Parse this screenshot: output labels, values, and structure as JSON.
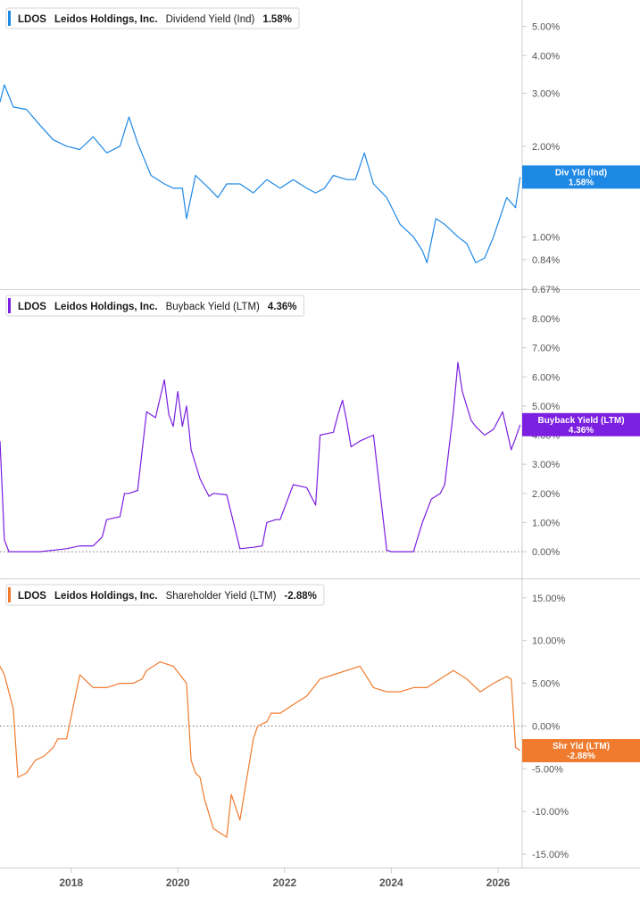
{
  "colors": {
    "dividend": "#1e88e5",
    "buyback": "#7b1fe0",
    "shareholder": "#f07b2e",
    "grid": "#cccccc",
    "text": "#555555"
  },
  "x_axis": {
    "ticks": [
      "2018",
      "2020",
      "2022",
      "2024",
      "2026"
    ],
    "range": [
      "2016-09-01",
      "2026-06-15"
    ]
  },
  "chart_data": [
    {
      "type": "line",
      "ticker": "LDOS",
      "company": "Leidos Holdings, Inc.",
      "metric": "Dividend Yield (Ind)",
      "current_value": "1.58%",
      "tag_label": "Div Yld (Ind)",
      "tag_value": "1.58%",
      "y_scale": "log",
      "y_ticks": [
        "5.00%",
        "4.00%",
        "3.00%",
        "2.00%",
        "1.00%",
        "0.84%",
        "0.67%"
      ],
      "y_tick_values": [
        5.0,
        4.0,
        3.0,
        2.0,
        1.0,
        0.84,
        0.67
      ],
      "y_range": [
        0.67,
        5.45
      ],
      "series": [
        {
          "x": [
            "2016-09",
            "2016-10",
            "2016-12",
            "2017-03",
            "2017-06",
            "2017-09",
            "2017-12",
            "2018-03",
            "2018-06",
            "2018-09",
            "2018-12",
            "2019-02",
            "2019-04",
            "2019-07",
            "2019-10",
            "2019-12",
            "2020-02",
            "2020-03",
            "2020-05",
            "2020-08",
            "2020-10",
            "2020-12",
            "2021-03",
            "2021-06",
            "2021-09",
            "2021-12",
            "2022-03",
            "2022-06",
            "2022-08",
            "2022-10",
            "2022-12",
            "2023-03",
            "2023-05",
            "2023-07",
            "2023-09",
            "2023-12",
            "2024-03",
            "2024-06",
            "2024-08",
            "2024-09",
            "2024-11",
            "2025-01",
            "2025-04",
            "2025-06",
            "2025-08",
            "2025-10",
            "2025-12",
            "2026-03",
            "2026-05",
            "2026-06"
          ],
          "values": [
            2.8,
            3.2,
            2.7,
            2.65,
            2.35,
            2.1,
            2.0,
            1.95,
            2.15,
            1.9,
            2.0,
            2.5,
            2.05,
            1.6,
            1.5,
            1.45,
            1.45,
            1.15,
            1.6,
            1.45,
            1.35,
            1.5,
            1.5,
            1.4,
            1.55,
            1.45,
            1.55,
            1.45,
            1.4,
            1.45,
            1.6,
            1.55,
            1.55,
            1.9,
            1.5,
            1.35,
            1.1,
            1.0,
            0.9,
            0.82,
            1.15,
            1.1,
            1.0,
            0.95,
            0.82,
            0.85,
            1.0,
            1.35,
            1.25,
            1.58
          ]
        }
      ]
    },
    {
      "type": "line",
      "ticker": "LDOS",
      "company": "Leidos Holdings, Inc.",
      "metric": "Buyback Yield (LTM)",
      "current_value": "4.36%",
      "tag_label": "Buyback Yield (LTM)",
      "tag_value": "4.36%",
      "y_scale": "linear",
      "y_ticks": [
        "8.00%",
        "7.00%",
        "6.00%",
        "5.00%",
        "4.00%",
        "3.00%",
        "2.00%",
        "1.00%",
        "0.00%"
      ],
      "y_tick_values": [
        8,
        7,
        6,
        5,
        4,
        3,
        2,
        1,
        0
      ],
      "y_range": [
        -0.12,
        8.0
      ],
      "series": [
        {
          "x": [
            "2016-09",
            "2016-10",
            "2016-11",
            "2017-01",
            "2017-06",
            "2017-12",
            "2018-03",
            "2018-06",
            "2018-08",
            "2018-09",
            "2018-12",
            "2019-01",
            "2019-02",
            "2019-04",
            "2019-06",
            "2019-08",
            "2019-10",
            "2019-11",
            "2019-12",
            "2020-01",
            "2020-02",
            "2020-03",
            "2020-04",
            "2020-06",
            "2020-08",
            "2020-09",
            "2020-12",
            "2021-03",
            "2021-06",
            "2021-08",
            "2021-09",
            "2021-11",
            "2021-12",
            "2022-03",
            "2022-06",
            "2022-08",
            "2022-09",
            "2022-12",
            "2023-01",
            "2023-02",
            "2023-03",
            "2023-04",
            "2023-06",
            "2023-09",
            "2023-12",
            "2024-01",
            "2024-03",
            "2024-06",
            "2024-08",
            "2024-10",
            "2024-12",
            "2025-01",
            "2025-03",
            "2025-04",
            "2025-05",
            "2025-07",
            "2025-08",
            "2025-10",
            "2025-12",
            "2026-02",
            "2026-04",
            "2026-05",
            "2026-06"
          ],
          "values": [
            3.8,
            0.4,
            0.0,
            0.0,
            0.0,
            0.1,
            0.2,
            0.2,
            0.5,
            1.1,
            1.2,
            2.0,
            2.0,
            2.1,
            4.8,
            4.6,
            5.9,
            4.7,
            4.3,
            5.5,
            4.3,
            5.0,
            3.5,
            2.5,
            1.9,
            2.0,
            1.95,
            0.1,
            0.15,
            0.2,
            1.0,
            1.1,
            1.1,
            2.3,
            2.2,
            1.6,
            4.0,
            4.1,
            4.7,
            5.2,
            4.5,
            3.6,
            3.8,
            4.0,
            0.05,
            0.0,
            0.0,
            0.0,
            1.0,
            1.8,
            2.0,
            2.3,
            4.8,
            6.5,
            5.5,
            4.5,
            4.3,
            4.0,
            4.2,
            4.8,
            3.5,
            3.9,
            4.36
          ]
        }
      ]
    },
    {
      "type": "line",
      "ticker": "LDOS",
      "company": "Leidos Holdings, Inc.",
      "metric": "Shareholder Yield (LTM)",
      "current_value": "-2.88%",
      "tag_label": "Shr Yld (LTM)",
      "tag_value": "-2.88%",
      "y_scale": "linear",
      "y_ticks": [
        "15.00%",
        "10.00%",
        "5.00%",
        "0.00%",
        "-5.00%",
        "-10.00%",
        "-15.00%"
      ],
      "y_tick_values": [
        15,
        10,
        5,
        0,
        -5,
        -10,
        -15
      ],
      "y_range": [
        -15.3,
        15.5
      ],
      "series": [
        {
          "x": [
            "2016-09",
            "2016-10",
            "2016-12",
            "2017-01",
            "2017-03",
            "2017-05",
            "2017-07",
            "2017-09",
            "2017-10",
            "2017-12",
            "2018-03",
            "2018-06",
            "2018-09",
            "2018-12",
            "2019-03",
            "2019-05",
            "2019-06",
            "2019-09",
            "2019-12",
            "2020-03",
            "2020-04",
            "2020-05",
            "2020-06",
            "2020-07",
            "2020-09",
            "2020-12",
            "2021-01",
            "2021-03",
            "2021-06",
            "2021-07",
            "2021-09",
            "2021-10",
            "2021-12",
            "2022-03",
            "2022-06",
            "2022-09",
            "2022-12",
            "2023-03",
            "2023-06",
            "2023-09",
            "2023-12",
            "2024-03",
            "2024-06",
            "2024-09",
            "2024-12",
            "2025-03",
            "2025-06",
            "2025-09",
            "2025-12",
            "2026-03",
            "2026-04",
            "2026-05",
            "2026-06"
          ],
          "values": [
            7.0,
            6.0,
            2.0,
            -6.0,
            -5.5,
            -4.0,
            -3.5,
            -2.5,
            -1.5,
            -1.5,
            6.0,
            4.5,
            4.5,
            5.0,
            5.0,
            5.5,
            6.5,
            7.5,
            7.0,
            5.0,
            -4.0,
            -5.5,
            -6.0,
            -8.5,
            -12.0,
            -13.0,
            -8.0,
            -11.0,
            -1.5,
            0.0,
            0.5,
            1.5,
            1.5,
            2.5,
            3.5,
            5.5,
            6.0,
            6.5,
            7.0,
            4.5,
            4.0,
            4.0,
            4.5,
            4.5,
            5.5,
            6.5,
            5.5,
            4.0,
            5.0,
            5.8,
            5.5,
            -2.5,
            -2.88
          ]
        }
      ]
    }
  ]
}
